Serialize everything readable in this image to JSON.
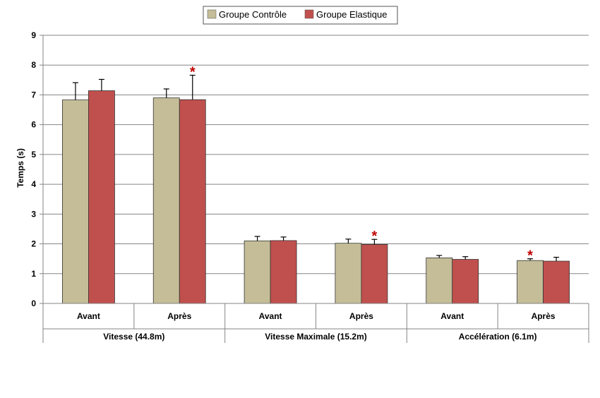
{
  "chart_data": {
    "type": "bar",
    "ylabel": "Temps (s)",
    "ylim": [
      0,
      9
    ],
    "yticks": [
      "0",
      "1",
      "2",
      "3",
      "4",
      "5",
      "6",
      "7",
      "8",
      "9"
    ],
    "grid": true,
    "legend_position": "top",
    "groups": [
      "Vitesse (44.8m)",
      "Vitesse Maximale (15.2m)",
      "Accélération (6.1m)"
    ],
    "categories": [
      "Avant",
      "Après",
      "Avant",
      "Après",
      "Avant",
      "Après"
    ],
    "series": [
      {
        "name": "Groupe Contrôle",
        "color": "#c4bd97",
        "values": [
          6.83,
          6.9,
          2.1,
          2.02,
          1.53,
          1.44
        ],
        "errors": [
          0.58,
          0.3,
          0.15,
          0.14,
          0.08,
          0.06
        ]
      },
      {
        "name": "Groupe Elastique",
        "color": "#c0504d",
        "values": [
          7.14,
          6.84,
          2.11,
          1.98,
          1.48,
          1.42
        ],
        "errors": [
          0.38,
          0.82,
          0.12,
          0.17,
          0.09,
          0.13
        ]
      }
    ],
    "significance": [
      {
        "category_index": 1,
        "series_index": 1,
        "label": "*"
      },
      {
        "category_index": 3,
        "series_index": 1,
        "label": "*"
      },
      {
        "category_index": 5,
        "series_index": 0,
        "label": "*"
      }
    ],
    "annotation_color": "#c00000"
  }
}
